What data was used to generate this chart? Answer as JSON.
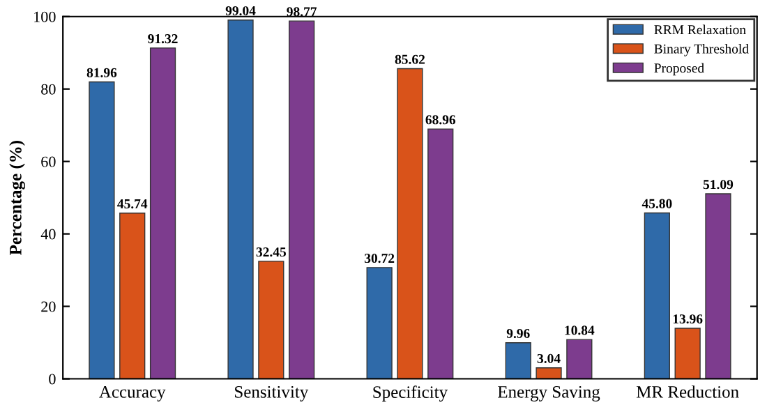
{
  "chart_data": {
    "type": "bar",
    "ylabel": "Percentage (%)",
    "categories": [
      "Accuracy",
      "Sensitivity",
      "Specificity",
      "Energy Saving",
      "MR Reduction"
    ],
    "series": [
      {
        "name": "RRM Relaxation",
        "color": "#2f6aa9",
        "values": [
          81.96,
          99.04,
          30.72,
          9.96,
          45.8
        ],
        "value_labels": [
          "81.96",
          "99.04",
          "30.72",
          "9.96",
          "45.80"
        ]
      },
      {
        "name": "Binary Threshold",
        "color": "#d9531a",
        "values": [
          45.74,
          32.45,
          85.62,
          3.04,
          13.96
        ],
        "value_labels": [
          "45.74",
          "32.45",
          "85.62",
          "3.04",
          "13.96"
        ]
      },
      {
        "name": "Proposed",
        "color": "#7d3c8e",
        "values": [
          91.32,
          98.77,
          68.96,
          10.84,
          51.09
        ],
        "value_labels": [
          "91.32",
          "98.77",
          "68.96",
          "10.84",
          "51.09"
        ]
      }
    ],
    "ylim": [
      0,
      100
    ],
    "yticks": [
      0,
      20,
      40,
      60,
      80,
      100
    ],
    "grid": false,
    "legend": "top right"
  }
}
